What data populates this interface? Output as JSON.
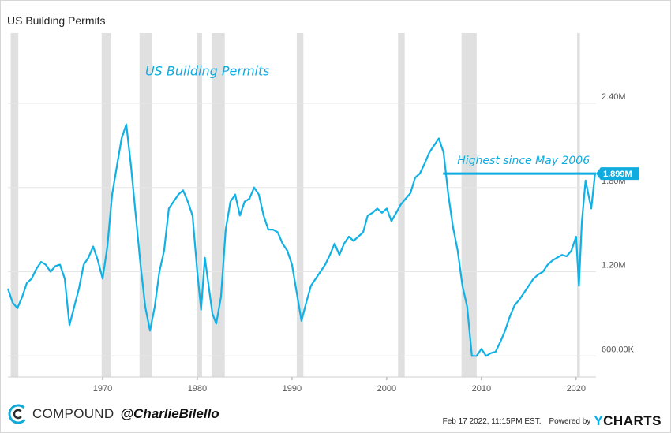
{
  "page_title": "US Building Permits",
  "footer": {
    "brand": "COMPOUND",
    "handle": "@CharlieBilello",
    "timestamp": "Feb 17 2022, 11:15PM EST.",
    "powered_by": "Powered by",
    "provider_y": "Y",
    "provider_rest": "CHARTS"
  },
  "colors": {
    "series": "#0fb1e6",
    "recession": "#e0e0e0",
    "grid": "#e6e6e6",
    "annotation": "#10ace0",
    "axis_text": "#555555"
  },
  "chart_data": {
    "type": "line",
    "title": "US Building Permits",
    "xlabel": "",
    "ylabel": "",
    "xlim": [
      1960.0,
      2022.1
    ],
    "ylim": [
      450000,
      2900000
    ],
    "grid": true,
    "y_axis_side": "right",
    "y_ticks": [
      {
        "value": 600000,
        "label": "600.00K"
      },
      {
        "value": 1200000,
        "label": "1.20M"
      },
      {
        "value": 1800000,
        "label": "1.80M"
      },
      {
        "value": 2400000,
        "label": "2.40M"
      }
    ],
    "x_ticks": [
      {
        "value": 1970,
        "label": "1970"
      },
      {
        "value": 1980,
        "label": "1980"
      },
      {
        "value": 1990,
        "label": "1990"
      },
      {
        "value": 2000,
        "label": "2000"
      },
      {
        "value": 2010,
        "label": "2010"
      },
      {
        "value": 2020,
        "label": "2020"
      }
    ],
    "recessions": [
      [
        1960.3,
        1961.1
      ],
      [
        1969.9,
        1970.9
      ],
      [
        1973.9,
        1975.2
      ],
      [
        1980.0,
        1980.5
      ],
      [
        1981.5,
        1982.9
      ],
      [
        1990.5,
        1991.2
      ],
      [
        2001.2,
        2001.9
      ],
      [
        2007.9,
        2009.5
      ],
      [
        2020.1,
        2020.4
      ]
    ],
    "series": [
      {
        "name": "US Building Permits",
        "x": [
          1960.0,
          1960.5,
          1961.0,
          1961.5,
          1962.0,
          1962.5,
          1963.0,
          1963.5,
          1964.0,
          1964.5,
          1965.0,
          1965.5,
          1966.0,
          1966.5,
          1967.0,
          1967.5,
          1968.0,
          1968.5,
          1969.0,
          1969.5,
          1970.0,
          1970.5,
          1971.0,
          1971.5,
          1972.0,
          1972.5,
          1973.0,
          1973.5,
          1974.0,
          1974.5,
          1975.0,
          1975.5,
          1976.0,
          1976.5,
          1977.0,
          1977.5,
          1978.0,
          1978.5,
          1979.0,
          1979.5,
          1980.0,
          1980.4,
          1980.8,
          1981.2,
          1981.6,
          1982.0,
          1982.5,
          1983.0,
          1983.5,
          1984.0,
          1984.5,
          1985.0,
          1985.5,
          1986.0,
          1986.5,
          1987.0,
          1987.5,
          1988.0,
          1988.5,
          1989.0,
          1989.5,
          1990.0,
          1990.5,
          1991.0,
          1991.5,
          1992.0,
          1992.5,
          1993.0,
          1993.5,
          1994.0,
          1994.5,
          1995.0,
          1995.5,
          1996.0,
          1996.5,
          1997.0,
          1997.5,
          1998.0,
          1998.5,
          1999.0,
          1999.5,
          2000.0,
          2000.5,
          2001.0,
          2001.5,
          2002.0,
          2002.5,
          2003.0,
          2003.5,
          2004.0,
          2004.5,
          2005.0,
          2005.5,
          2006.0,
          2006.5,
          2007.0,
          2007.5,
          2008.0,
          2008.5,
          2009.0,
          2009.5,
          2010.0,
          2010.5,
          2011.0,
          2011.5,
          2012.0,
          2012.5,
          2013.0,
          2013.5,
          2014.0,
          2014.5,
          2015.0,
          2015.5,
          2016.0,
          2016.5,
          2017.0,
          2017.5,
          2018.0,
          2018.5,
          2019.0,
          2019.5,
          2020.0,
          2020.3,
          2020.6,
          2021.0,
          2021.3,
          2021.6,
          2022.0
        ],
        "values": [
          1080000,
          980000,
          940000,
          1020000,
          1120000,
          1150000,
          1220000,
          1270000,
          1250000,
          1200000,
          1240000,
          1250000,
          1150000,
          820000,
          950000,
          1080000,
          1250000,
          1300000,
          1380000,
          1280000,
          1150000,
          1380000,
          1750000,
          1950000,
          2150000,
          2250000,
          1950000,
          1600000,
          1250000,
          950000,
          780000,
          950000,
          1200000,
          1350000,
          1650000,
          1700000,
          1750000,
          1780000,
          1700000,
          1600000,
          1200000,
          930000,
          1300000,
          1100000,
          900000,
          830000,
          1020000,
          1500000,
          1700000,
          1750000,
          1600000,
          1700000,
          1720000,
          1800000,
          1750000,
          1600000,
          1500000,
          1500000,
          1480000,
          1400000,
          1350000,
          1250000,
          1050000,
          850000,
          980000,
          1100000,
          1150000,
          1200000,
          1250000,
          1320000,
          1400000,
          1320000,
          1400000,
          1450000,
          1420000,
          1450000,
          1480000,
          1600000,
          1620000,
          1650000,
          1620000,
          1650000,
          1560000,
          1620000,
          1680000,
          1720000,
          1760000,
          1870000,
          1900000,
          1970000,
          2050000,
          2100000,
          2150000,
          2050000,
          1750000,
          1520000,
          1350000,
          1100000,
          950000,
          600000,
          600000,
          650000,
          600000,
          620000,
          630000,
          700000,
          780000,
          880000,
          960000,
          1000000,
          1050000,
          1100000,
          1150000,
          1180000,
          1200000,
          1250000,
          1280000,
          1300000,
          1320000,
          1310000,
          1350000,
          1450000,
          1100000,
          1550000,
          1850000,
          1750000,
          1650000,
          1899000
        ]
      }
    ],
    "annotations": [
      {
        "type": "hline",
        "value": 1899000,
        "x_start": 2005.95,
        "x_end": 2022.1,
        "label": "Highest since May 2006"
      },
      {
        "type": "text",
        "text": "US Building Permits",
        "x": 1974.5,
        "y": 2600000
      }
    ],
    "last_value_label": "1.899M"
  }
}
